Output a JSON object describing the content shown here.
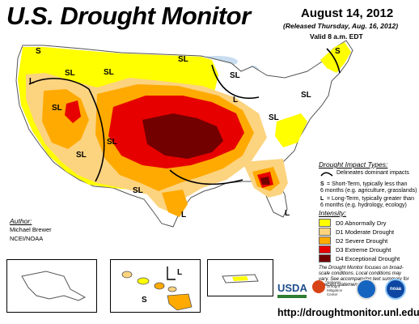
{
  "header": {
    "title": "U.S. Drought Monitor",
    "date": "August 14, 2012",
    "released": "(Released Thursday, Aug. 16, 2012)",
    "valid": "Valid 8 a.m. EDT"
  },
  "map_labels": [
    "SL",
    "L",
    "SL",
    "S",
    "SL",
    "SL",
    "L",
    "SL",
    "SL",
    "SL",
    "SL",
    "SL",
    "L",
    "SL",
    "L",
    "S"
  ],
  "impact": {
    "title": "Drought Impact Types:",
    "line_symbol": "Delineates dominant impacts",
    "short_term_label": "S",
    "short_term_line1": "= Short-Term, typically less than",
    "short_term_line2": "6 months (e.g. agriculture, grasslands)",
    "long_term_label": "L",
    "long_term_line1": "= Long-Term, typically greater than",
    "long_term_line2": "6 months (e.g. hydrology, ecology)"
  },
  "intensity": {
    "title": "Intensity:",
    "levels": [
      {
        "label": "D0 Abnormally Dry",
        "color": "#ffff00"
      },
      {
        "label": "D1 Moderate Drought",
        "color": "#fcd37f"
      },
      {
        "label": "D2 Severe Drought",
        "color": "#ffaa00"
      },
      {
        "label": "D3 Extreme Drought",
        "color": "#e60000"
      },
      {
        "label": "D4 Exceptional Drought",
        "color": "#730000"
      }
    ]
  },
  "author": {
    "title": "Author:",
    "name": "Michael Brewer",
    "org": "NCEI/NOAA"
  },
  "note": {
    "line1": "The Drought Monitor focuses on broad-",
    "line2": "scale conditions. Local conditions may",
    "line3": "vary. See accompanying text summary for",
    "line4": "forecast statements."
  },
  "logos": {
    "usda": "USDA",
    "ndmc_line1": "National",
    "ndmc_line2": "Drought",
    "ndmc_line3": "Mitigation",
    "ndmc_line4": "Center",
    "noaa": "noaa"
  },
  "url": "http://droughtmonitor.unl.edu/",
  "colors": {
    "water": "#c8ddf0",
    "land": "#ffffff"
  }
}
